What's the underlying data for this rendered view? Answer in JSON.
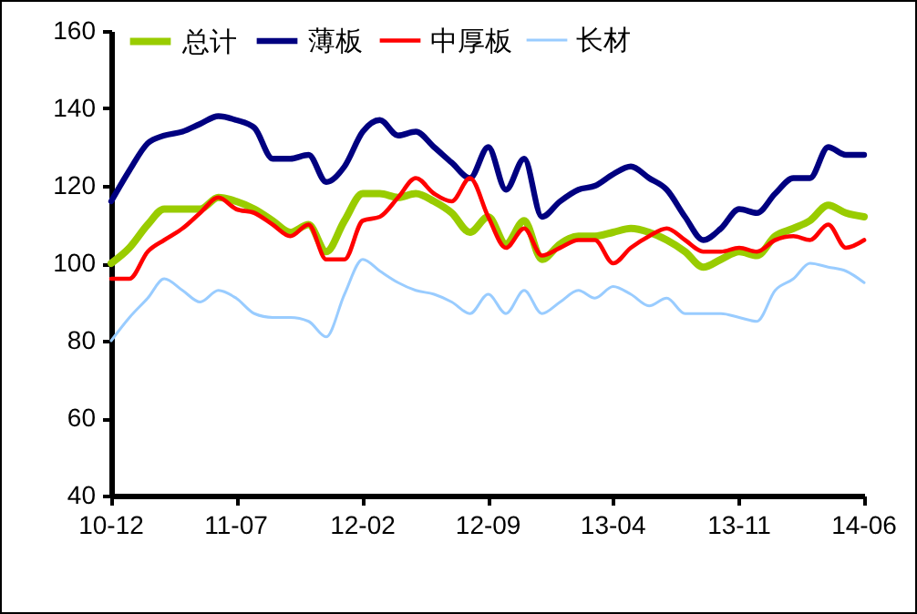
{
  "chart_data": {
    "type": "line",
    "x": [
      "2010-12",
      "2011-01",
      "2011-02",
      "2011-03",
      "2011-04",
      "2011-05",
      "2011-06",
      "2011-07",
      "2011-08",
      "2011-09",
      "2011-10",
      "2011-11",
      "2011-12",
      "2012-01",
      "2012-02",
      "2012-03",
      "2012-04",
      "2012-05",
      "2012-06",
      "2012-07",
      "2012-08",
      "2012-09",
      "2012-10",
      "2012-11",
      "2012-12",
      "2013-01",
      "2013-02",
      "2013-03",
      "2013-04",
      "2013-05",
      "2013-06",
      "2013-07",
      "2013-08",
      "2013-09",
      "2013-10",
      "2013-11",
      "2013-12",
      "2014-01",
      "2014-02",
      "2014-03",
      "2014-04",
      "2014-05",
      "2014-06"
    ],
    "series": [
      {
        "name": "总计",
        "color": "#99cc00",
        "values": [
          100,
          104,
          110,
          114,
          114,
          114,
          117,
          116,
          114,
          111,
          108,
          110,
          103,
          111,
          118,
          118,
          117,
          118,
          116,
          113,
          108,
          112,
          105,
          111,
          101,
          105,
          107,
          107,
          108,
          109,
          108,
          106,
          103,
          99,
          101,
          103,
          102,
          107,
          109,
          111,
          115,
          113,
          112
        ]
      },
      {
        "name": "薄板",
        "color": "#000080",
        "values": [
          116,
          124,
          131,
          133,
          134,
          136,
          138,
          137,
          135,
          127,
          127,
          128,
          121,
          125,
          134,
          137,
          133,
          134,
          130,
          126,
          122,
          130,
          119,
          127,
          112,
          116,
          119,
          120,
          123,
          125,
          122,
          119,
          112,
          106,
          109,
          114,
          113,
          118,
          122,
          122,
          130,
          128,
          128
        ]
      },
      {
        "name": "中厚板",
        "color": "#ff0000",
        "values": [
          96,
          96,
          103,
          106,
          109,
          113,
          117,
          114,
          113,
          110,
          107,
          110,
          101,
          101,
          111,
          112,
          117,
          122,
          118,
          116,
          122,
          112,
          104,
          109,
          102,
          104,
          106,
          106,
          100,
          104,
          107,
          109,
          106,
          103,
          103,
          104,
          103,
          106,
          107,
          106,
          110,
          104,
          106
        ]
      },
      {
        "name": "长材",
        "color": "#99ccff",
        "values": [
          80,
          86,
          91,
          96,
          93,
          90,
          93,
          91,
          87,
          86,
          86,
          85,
          81,
          92,
          101,
          98,
          95,
          93,
          92,
          90,
          87,
          92,
          87,
          93,
          87,
          90,
          93,
          91,
          94,
          92,
          89,
          91,
          87,
          87,
          87,
          86,
          85,
          93,
          96,
          100,
          99,
          98,
          95
        ]
      }
    ],
    "xlim": [
      "2010-12",
      "2014-06"
    ],
    "xticks": [
      {
        "value": "2010-12",
        "label": "10-12"
      },
      {
        "value": "2011-07",
        "label": "11-07"
      },
      {
        "value": "2012-02",
        "label": "12-02"
      },
      {
        "value": "2012-09",
        "label": "12-09"
      },
      {
        "value": "2013-04",
        "label": "13-04"
      },
      {
        "value": "2013-11",
        "label": "13-11"
      },
      {
        "value": "2014-06",
        "label": "14-06"
      }
    ],
    "ylim": [
      40,
      160
    ],
    "yticks": [
      40,
      60,
      80,
      100,
      120,
      140,
      160
    ],
    "grid": false,
    "legend": "top"
  }
}
